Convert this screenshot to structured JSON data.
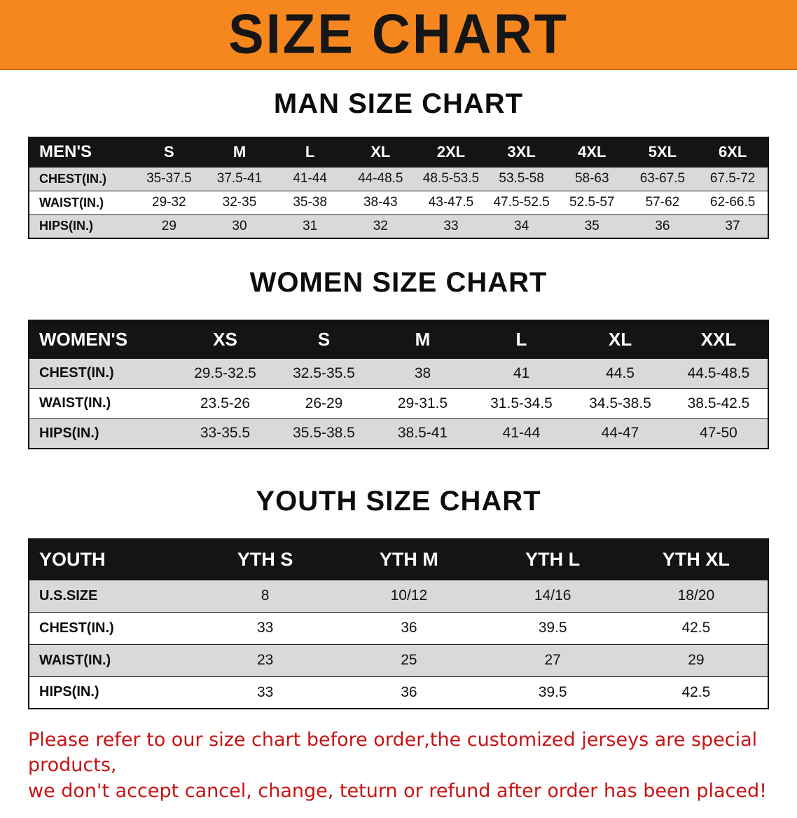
{
  "banner": {
    "title": "SIZE CHART"
  },
  "colors": {
    "banner_bg": "#f6871f",
    "header_bg": "#141414",
    "row_shade": "#d9d9d9",
    "disclaimer_red": "#c81414"
  },
  "sections": [
    {
      "heading": "MAN SIZE CHART",
      "table": {
        "header": [
          "MEN'S",
          "S",
          "M",
          "L",
          "XL",
          "2XL",
          "3XL",
          "4XL",
          "5XL",
          "6XL"
        ],
        "rows": [
          {
            "label": "CHEST(IN.)",
            "values": [
              "35-37.5",
              "37.5-41",
              "41-44",
              "44-48.5",
              "48.5-53.5",
              "53.5-58",
              "58-63",
              "63-67.5",
              "67.5-72"
            ]
          },
          {
            "label": "WAIST(IN.)",
            "values": [
              "29-32",
              "32-35",
              "35-38",
              "38-43",
              "43-47.5",
              "47.5-52.5",
              "52.5-57",
              "57-62",
              "62-66.5"
            ]
          },
          {
            "label": "HIPS(IN.)",
            "values": [
              "29",
              "30",
              "31",
              "32",
              "33",
              "34",
              "35",
              "36",
              "37"
            ]
          }
        ]
      }
    },
    {
      "heading": "WOMEN SIZE CHART",
      "table": {
        "header": [
          "WOMEN'S",
          "XS",
          "S",
          "M",
          "L",
          "XL",
          "XXL"
        ],
        "rows": [
          {
            "label": "CHEST(IN.)",
            "values": [
              "29.5-32.5",
              "32.5-35.5",
              "38",
              "41",
              "44.5",
              "44.5-48.5"
            ]
          },
          {
            "label": "WAIST(IN.)",
            "values": [
              "23.5-26",
              "26-29",
              "29-31.5",
              "31.5-34.5",
              "34.5-38.5",
              "38.5-42.5"
            ]
          },
          {
            "label": "HIPS(IN.)",
            "values": [
              "33-35.5",
              "35.5-38.5",
              "38.5-41",
              "41-44",
              "44-47",
              "47-50"
            ]
          }
        ]
      }
    },
    {
      "heading": "YOUTH SIZE CHART",
      "table": {
        "header": [
          "YOUTH",
          "YTH S",
          "YTH M",
          "YTH L",
          "YTH XL"
        ],
        "rows": [
          {
            "label": "U.S.SIZE",
            "values": [
              "8",
              "10/12",
              "14/16",
              "18/20"
            ]
          },
          {
            "label": "CHEST(IN.)",
            "values": [
              "33",
              "36",
              "39.5",
              "42.5"
            ]
          },
          {
            "label": "WAIST(IN.)",
            "values": [
              "23",
              "25",
              "27",
              "29"
            ]
          },
          {
            "label": "HIPS(IN.)",
            "values": [
              "33",
              "36",
              "39.5",
              "42.5"
            ]
          }
        ]
      }
    }
  ],
  "disclaimer": {
    "line1": "Please refer to our size chart before order,the customized jerseys are special products,",
    "line2": "we don't accept cancel, change, teturn or refund after order has been placed!"
  }
}
